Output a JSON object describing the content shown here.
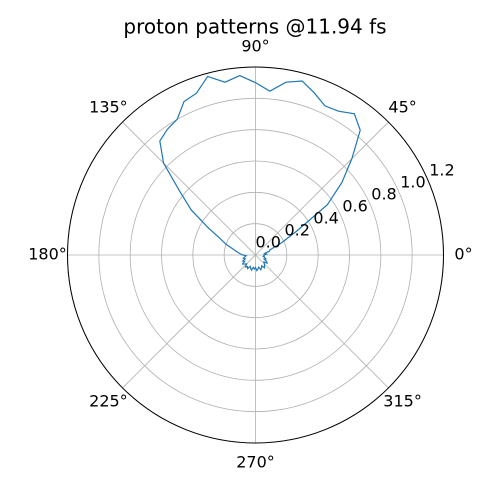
{
  "chart_data": {
    "type": "polar-line",
    "title": "proton patterns @11.94 fs",
    "series": [
      {
        "color": "#1f77b4",
        "x": [
          0,
          5,
          10,
          15,
          20,
          25,
          30,
          35,
          40,
          45,
          50,
          55,
          60,
          65,
          70,
          75,
          80,
          85,
          90,
          95,
          100,
          105,
          110,
          115,
          120,
          125,
          130,
          135,
          140,
          145,
          150,
          155,
          160,
          165,
          170,
          175,
          180,
          185,
          190,
          195,
          200,
          205,
          210,
          215,
          220,
          225,
          230,
          235,
          240,
          245,
          250,
          255,
          260,
          265,
          270,
          275,
          280,
          285,
          290,
          295,
          300,
          305,
          310,
          315,
          320,
          325,
          330,
          335,
          340,
          345,
          350,
          355
        ],
        "values": [
          0.05,
          0.07,
          0.06,
          0.09,
          0.1,
          0.18,
          0.3,
          0.56,
          0.72,
          0.87,
          1.04,
          1.1,
          1.06,
          1.05,
          1.1,
          1.15,
          1.12,
          1.05,
          1.1,
          1.15,
          1.12,
          1.18,
          1.1,
          1.08,
          1.0,
          0.98,
          0.95,
          0.83,
          0.63,
          0.5,
          0.35,
          0.25,
          0.2,
          0.15,
          0.12,
          0.1,
          0.08,
          0.06,
          0.07,
          0.08,
          0.07,
          0.09,
          0.08,
          0.1,
          0.09,
          0.08,
          0.1,
          0.09,
          0.1,
          0.08,
          0.09,
          0.1,
          0.08,
          0.09,
          0.08,
          0.1,
          0.09,
          0.08,
          0.1,
          0.09,
          0.08,
          0.1,
          0.09,
          0.08,
          0.07,
          0.09,
          0.08,
          0.06,
          0.07,
          0.06,
          0.05,
          0.06
        ]
      }
    ],
    "xticks": [
      {
        "value": 0,
        "label": "0°"
      },
      {
        "value": 45,
        "label": "45°"
      },
      {
        "value": 90,
        "label": "90°"
      },
      {
        "value": 135,
        "label": "135°"
      },
      {
        "value": 180,
        "label": "180°"
      },
      {
        "value": 225,
        "label": "225°"
      },
      {
        "value": 270,
        "label": "270°"
      },
      {
        "value": 315,
        "label": "315°"
      }
    ],
    "ylim": [
      0,
      1.2
    ],
    "yticks": [
      {
        "value": 0,
        "label": "0.0"
      },
      0.2,
      0.4,
      0.6,
      0.8,
      {
        "value": 1,
        "label": "1.0"
      },
      1.2
    ],
    "grid": true
  }
}
